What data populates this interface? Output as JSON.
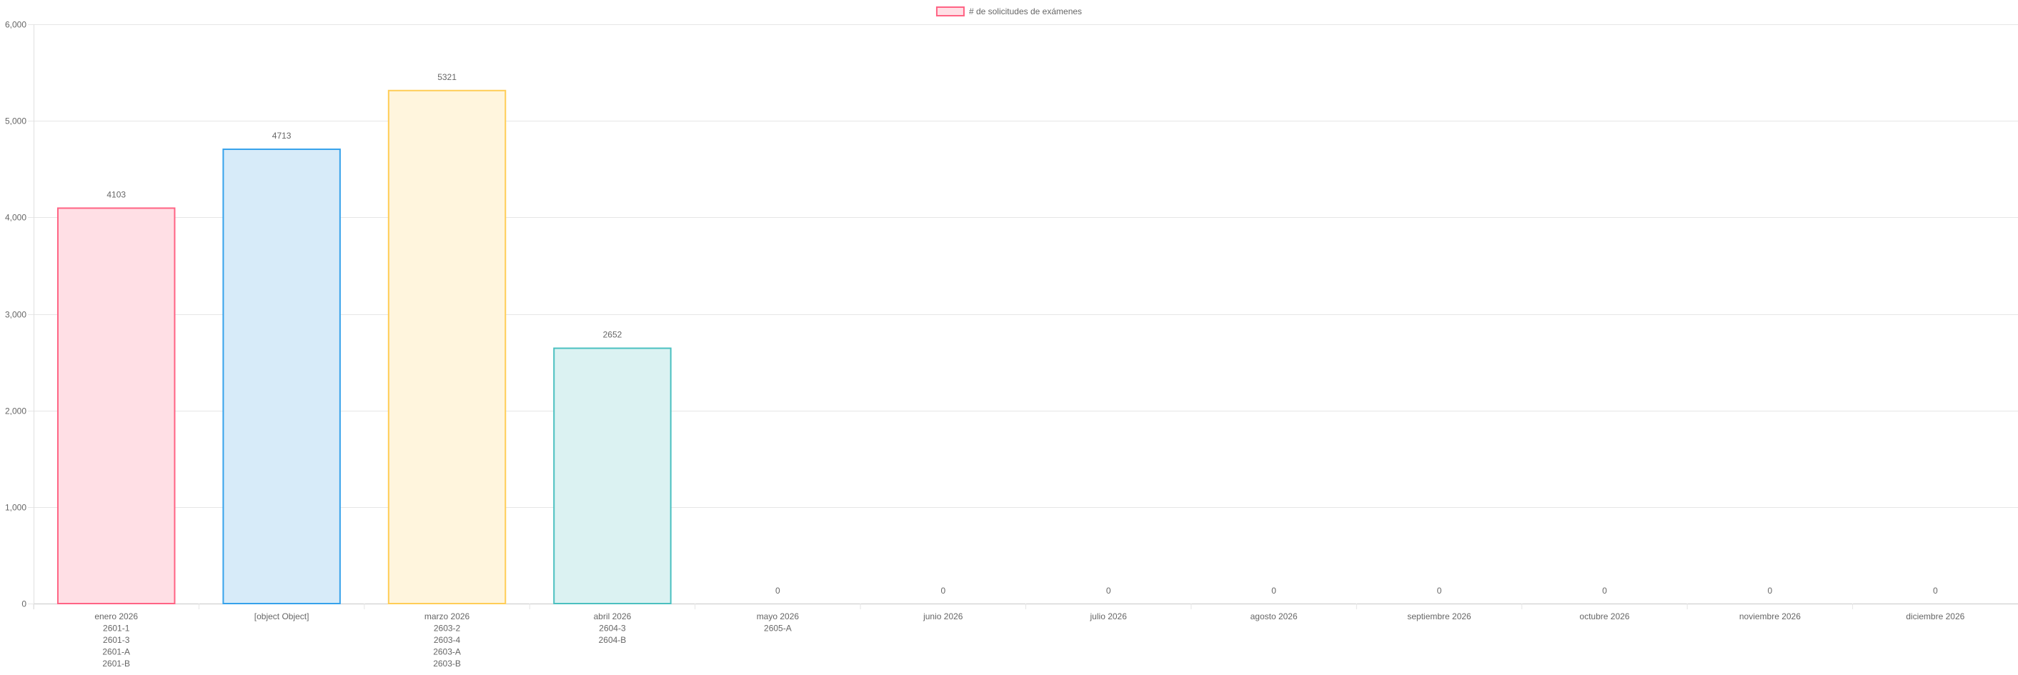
{
  "chart_data": {
    "type": "bar",
    "categories": [
      [
        "enero 2026",
        "2601-1",
        "2601-3",
        "2601-A",
        "2601-B"
      ],
      [
        "[object Object]"
      ],
      [
        "marzo 2026",
        "2603-2",
        "2603-4",
        "2603-A",
        "2603-B"
      ],
      [
        "abril 2026",
        "2604-3",
        "2604-B"
      ],
      [
        "mayo 2026",
        "2605-A"
      ],
      [
        "junio 2026"
      ],
      [
        "julio 2026"
      ],
      [
        "agosto 2026"
      ],
      [
        "septiembre 2026"
      ],
      [
        "octubre 2026"
      ],
      [
        "noviembre 2026"
      ],
      [
        "diciembre 2026"
      ]
    ],
    "series": [
      {
        "name": "# de solicitudes de exámenes",
        "values": [
          4103,
          4713,
          5321,
          2652,
          0,
          0,
          0,
          0,
          0,
          0,
          0,
          0
        ],
        "data_labels": [
          "4103",
          "4713",
          "5321",
          "2652",
          "0",
          "0",
          "0",
          "0",
          "0",
          "0",
          "0",
          "0"
        ]
      }
    ],
    "bar_colors": [
      {
        "fill": "#ffdfe5",
        "stroke": "#ff6384"
      },
      {
        "fill": "#d7ebf9",
        "stroke": "#36a2eb"
      },
      {
        "fill": "#fff5dd",
        "stroke": "#ffcd56"
      },
      {
        "fill": "#dbf2f2",
        "stroke": "#4bc0c0"
      },
      {
        "fill": "#ebe0ff",
        "stroke": "#9966ff"
      },
      {
        "fill": "#ffe6d2",
        "stroke": "#ff9f40"
      },
      {
        "fill": "#f4f5f5",
        "stroke": "#c9cbcf"
      },
      {
        "fill": "#ffdfe5",
        "stroke": "#ff6384"
      },
      {
        "fill": "#d7ebf9",
        "stroke": "#36a2eb"
      },
      {
        "fill": "#fff5dd",
        "stroke": "#ffcd56"
      },
      {
        "fill": "#dbf2f2",
        "stroke": "#4bc0c0"
      },
      {
        "fill": "#ebe0ff",
        "stroke": "#9966ff"
      }
    ],
    "legend": {
      "label": "# de solicitudes de exámenes",
      "position": "top",
      "fill": "#ffdfe5",
      "stroke": "#ff6384"
    },
    "ylim": [
      0,
      6000
    ],
    "yticks": [
      0,
      1000,
      2000,
      3000,
      4000,
      5000,
      6000
    ],
    "ytick_labels": [
      "0",
      "1,000",
      "2,000",
      "3,000",
      "4,000",
      "5,000",
      "6,000"
    ],
    "grid": true,
    "title": "",
    "xlabel": "",
    "ylabel": ""
  }
}
